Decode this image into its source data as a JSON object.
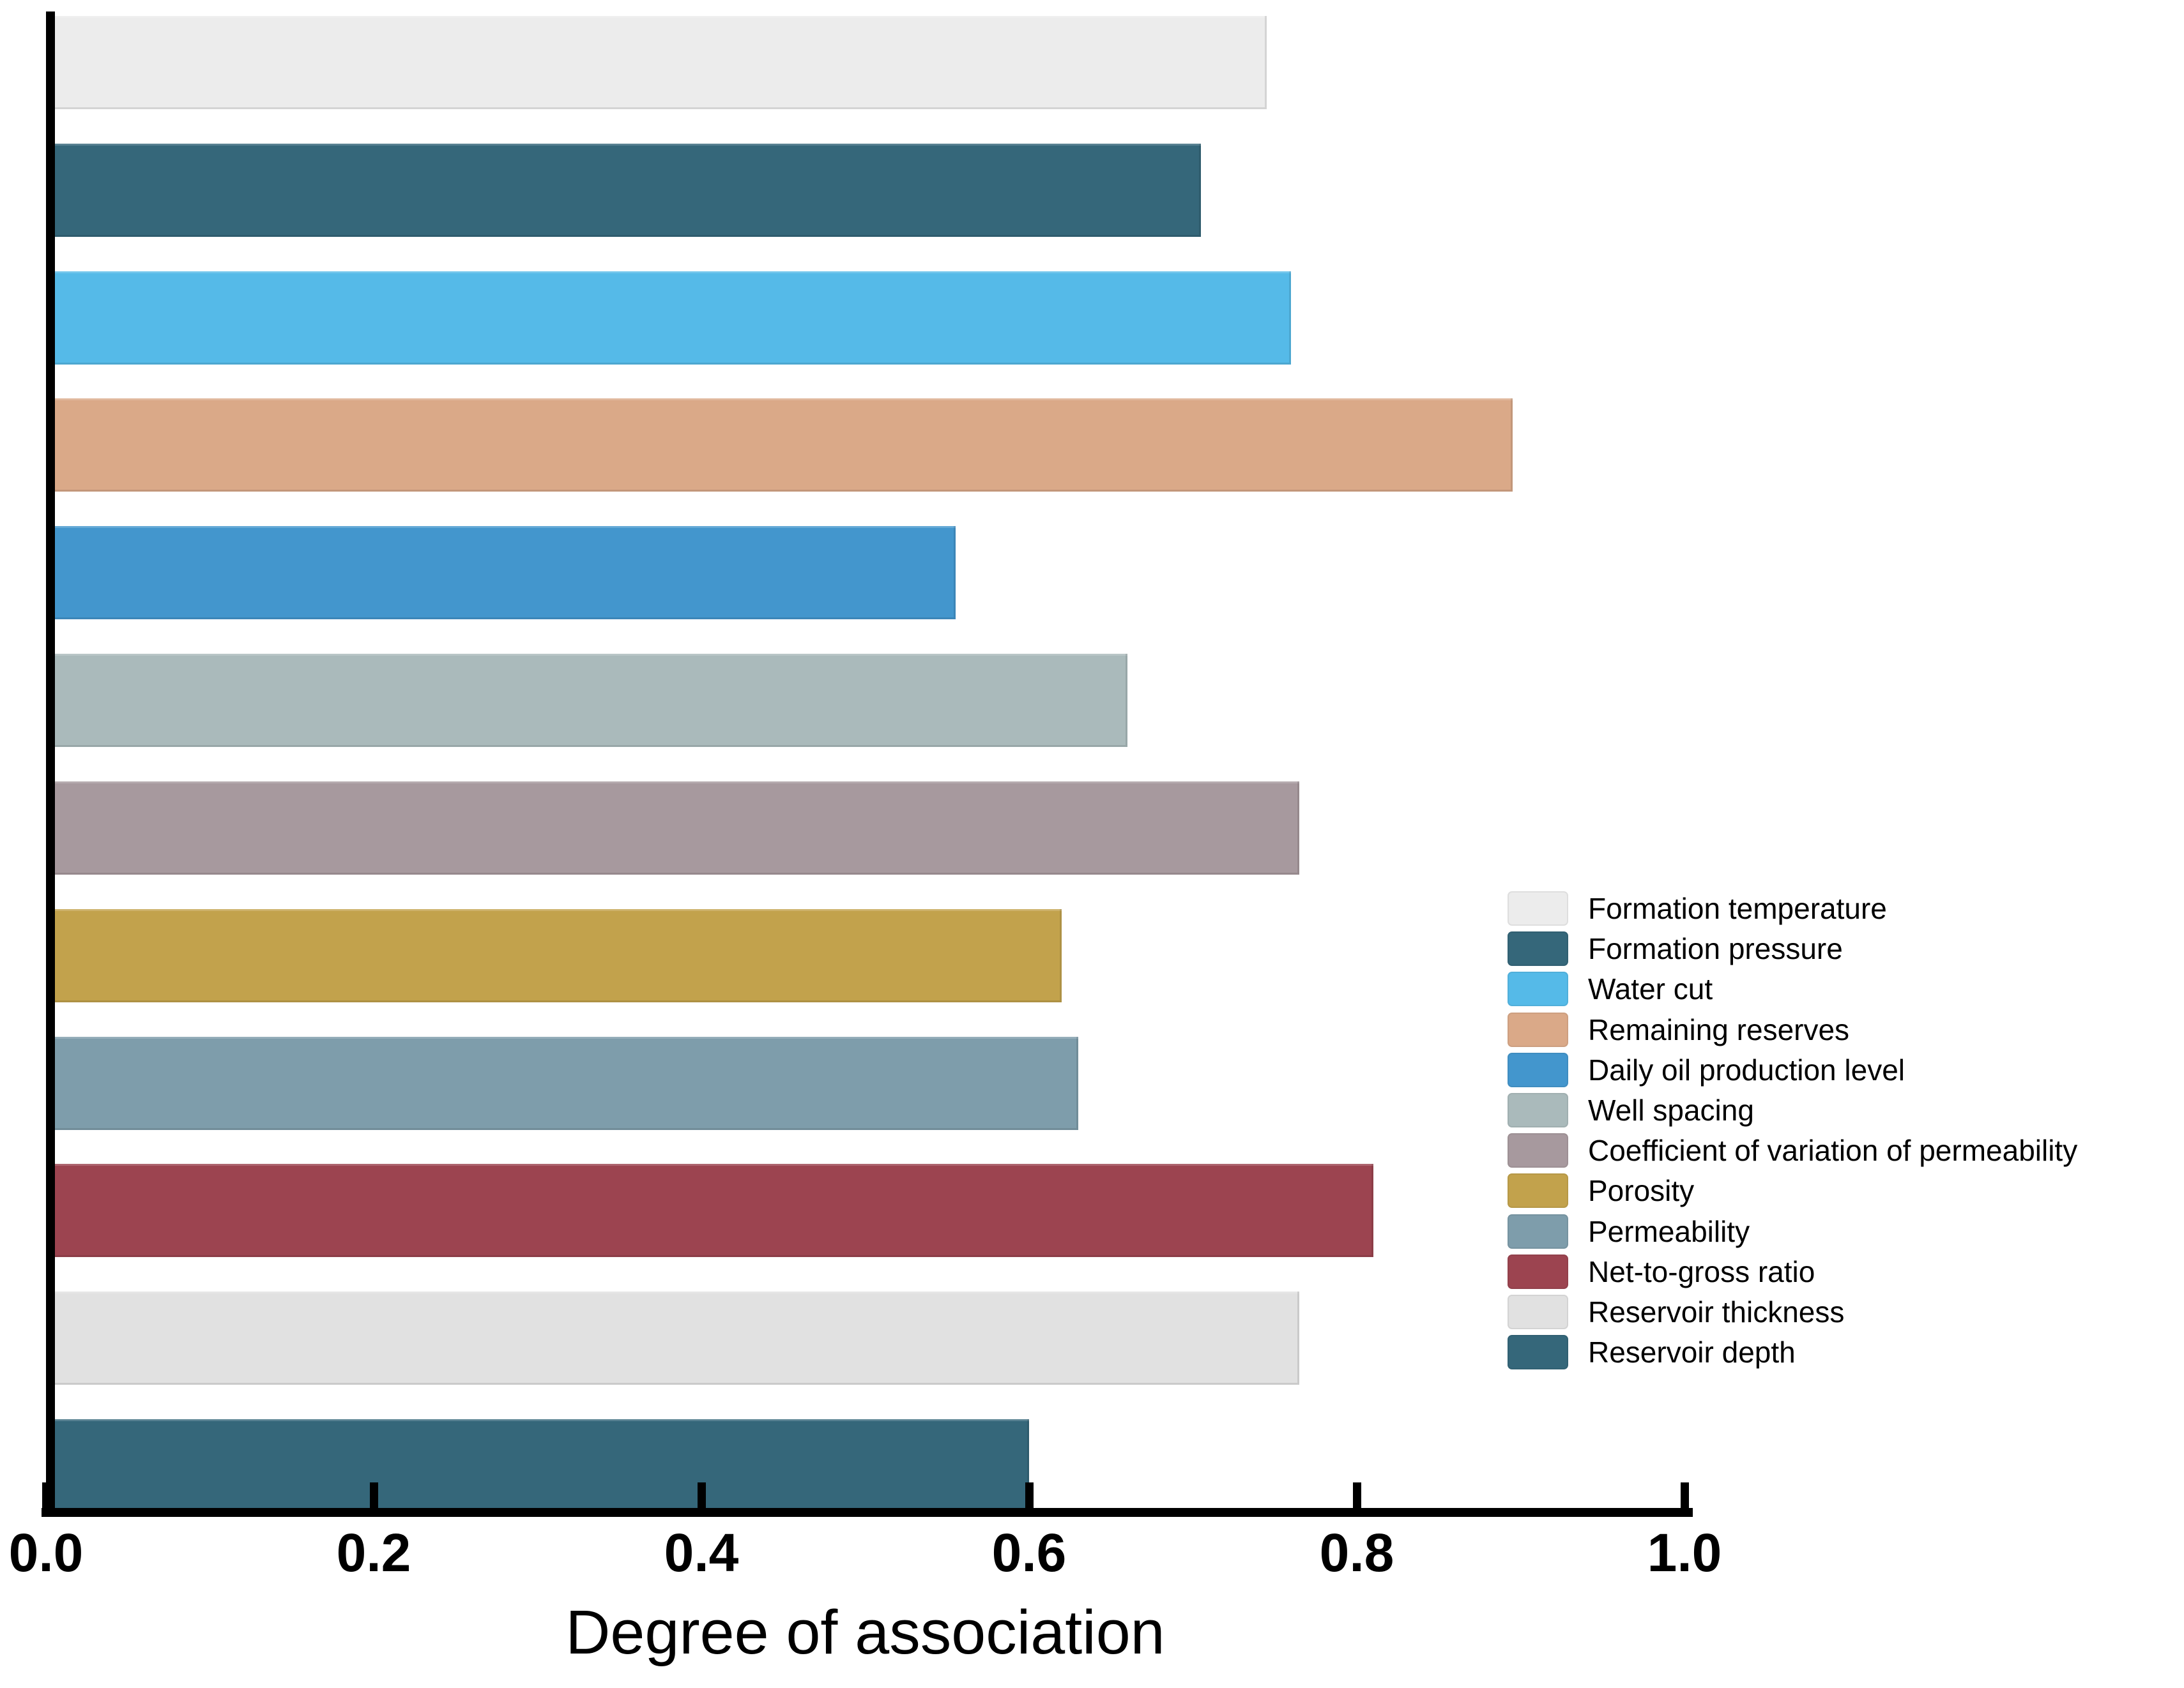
{
  "figure": {
    "background_color": "#ffffff",
    "axis_color": "#000000"
  },
  "chart_data": {
    "type": "bar",
    "orientation": "horizontal",
    "title": "",
    "xlabel": "Degree of association",
    "ylabel": "",
    "xlim": [
      0.0,
      1.0
    ],
    "xtick_labels": [
      "0.0",
      "0.2",
      "0.4",
      "0.6",
      "0.8",
      "1.0"
    ],
    "xtick_values": [
      0.0,
      0.2,
      0.4,
      0.6,
      0.8,
      1.0
    ],
    "grid": false,
    "legend_position": "right-lower",
    "categories": [
      "Formation temperature",
      "Formation pressure",
      "Water cut",
      "Remaining reserves",
      "Daily oil production level",
      "Well spacing",
      "Coefficient of variation of permeability",
      "Porosity",
      "Permeability",
      "Net-to-gross ratio",
      "Reservoir thickness",
      "Reservoir depth"
    ],
    "values": [
      0.745,
      0.705,
      0.76,
      0.895,
      0.555,
      0.66,
      0.765,
      0.62,
      0.63,
      0.81,
      0.765,
      0.6
    ],
    "colors": [
      "#ECECEC",
      "#35677A",
      "#55BAE8",
      "#DAA988",
      "#4396CD",
      "#AABABB",
      "#A7999E",
      "#C2A24C",
      "#7E9DAB",
      "#9C4450",
      "#E1E1E1",
      "#35677A"
    ],
    "legend_entries": [
      "Formation temperature",
      "Formation pressure",
      "Water cut",
      "Remaining reserves",
      "Daily oil production level",
      "Well spacing",
      "Coefficient of variation of permeability",
      "Porosity",
      "Permeability",
      "Net-to-gross ratio",
      "Reservoir thickness",
      "Reservoir depth"
    ]
  }
}
